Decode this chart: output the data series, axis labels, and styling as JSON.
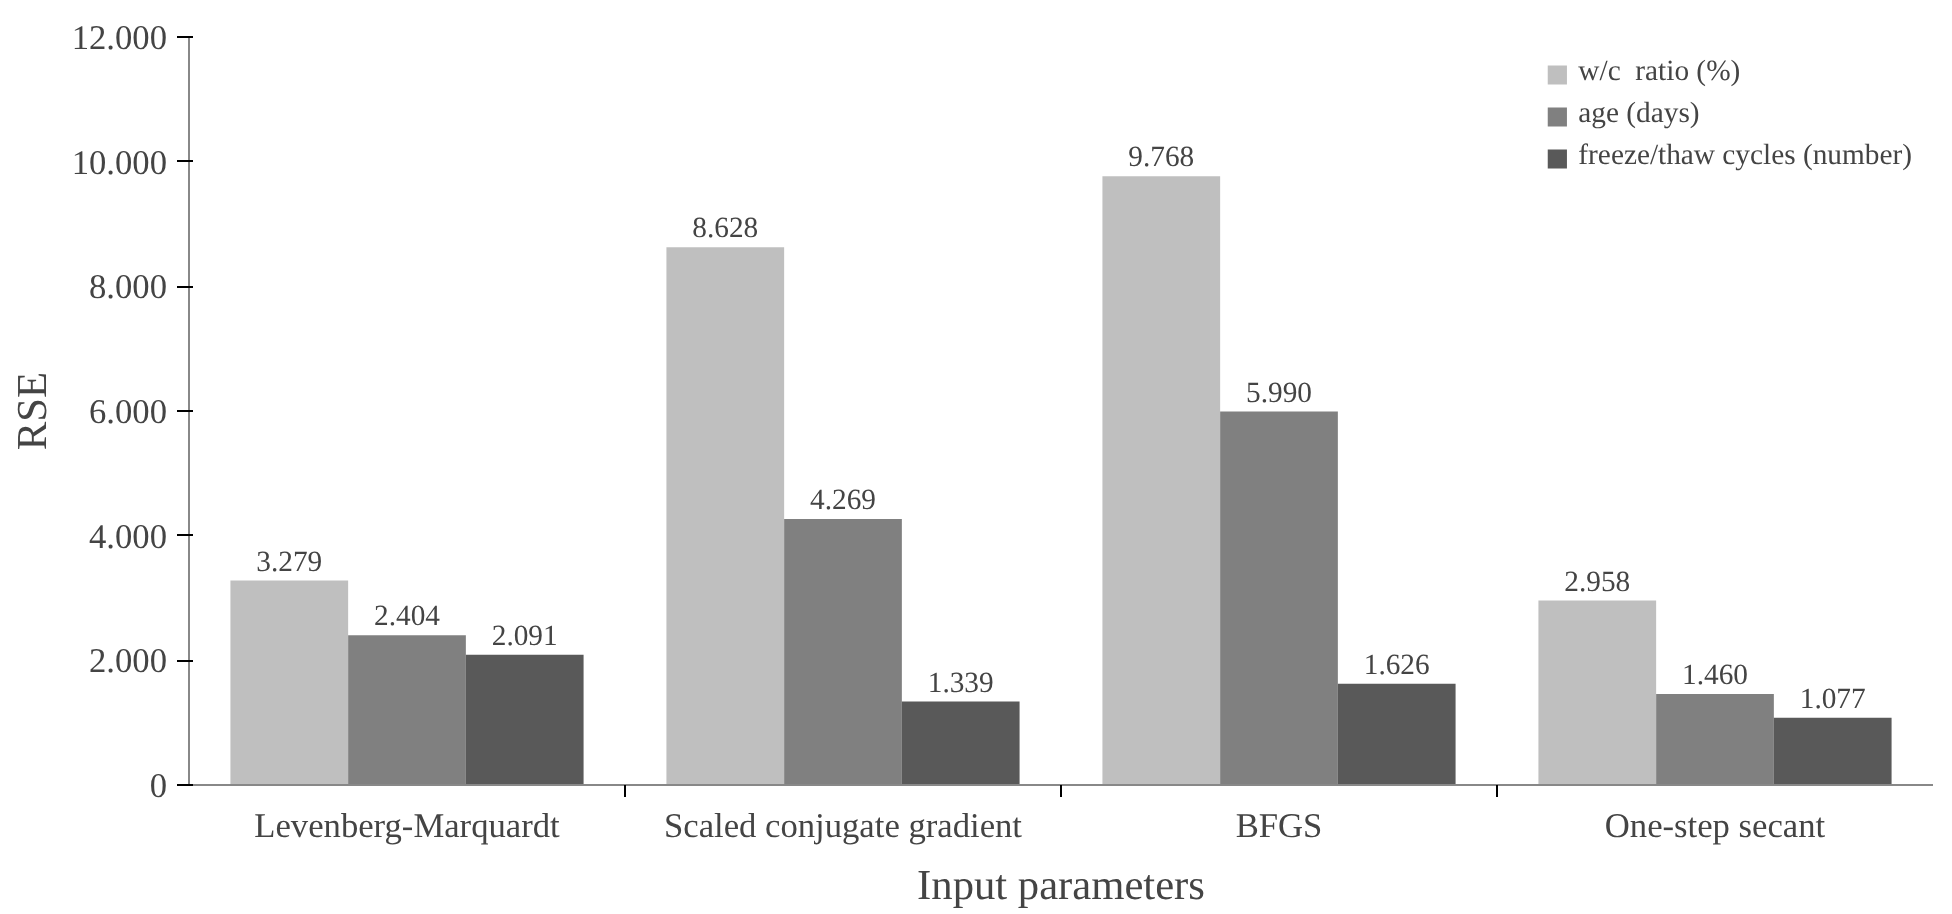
{
  "chart_data": {
    "type": "bar",
    "xlabel": "Input parameters",
    "ylabel": "RSE",
    "categories": [
      "Levenberg-Marquardt",
      "Scaled conjugate gradient",
      "BFGS",
      "One-step secant"
    ],
    "series": [
      {
        "name": "w/c  ratio (%)",
        "color": "#bfbfbf",
        "values": [
          3279,
          8628,
          9768,
          2958
        ],
        "value_labels": [
          "3.279",
          "8.628",
          "9.768",
          "2.958"
        ]
      },
      {
        "name": "age (days)",
        "color": "#808080",
        "values": [
          2404,
          4269,
          5990,
          1460
        ],
        "value_labels": [
          "2.404",
          "4.269",
          "5.990",
          "1.460"
        ]
      },
      {
        "name": "freeze/thaw cycles (number)",
        "color": "#595959",
        "values": [
          2091,
          1339,
          1626,
          1077
        ],
        "value_labels": [
          "2.091",
          "1.339",
          "1.626",
          "1.077"
        ]
      }
    ],
    "ylim": [
      0,
      12000
    ],
    "yticks": [
      0,
      {
        "value": 2000,
        "label": "2.000"
      },
      {
        "value": 4000,
        "label": "4.000"
      },
      {
        "value": 6000,
        "label": "6.000"
      },
      {
        "value": 8000,
        "label": "8.000"
      },
      {
        "value": 10000,
        "label": "10.000"
      },
      {
        "value": 12000,
        "label": "12.000"
      }
    ],
    "legend": "top right",
    "grid": false
  }
}
